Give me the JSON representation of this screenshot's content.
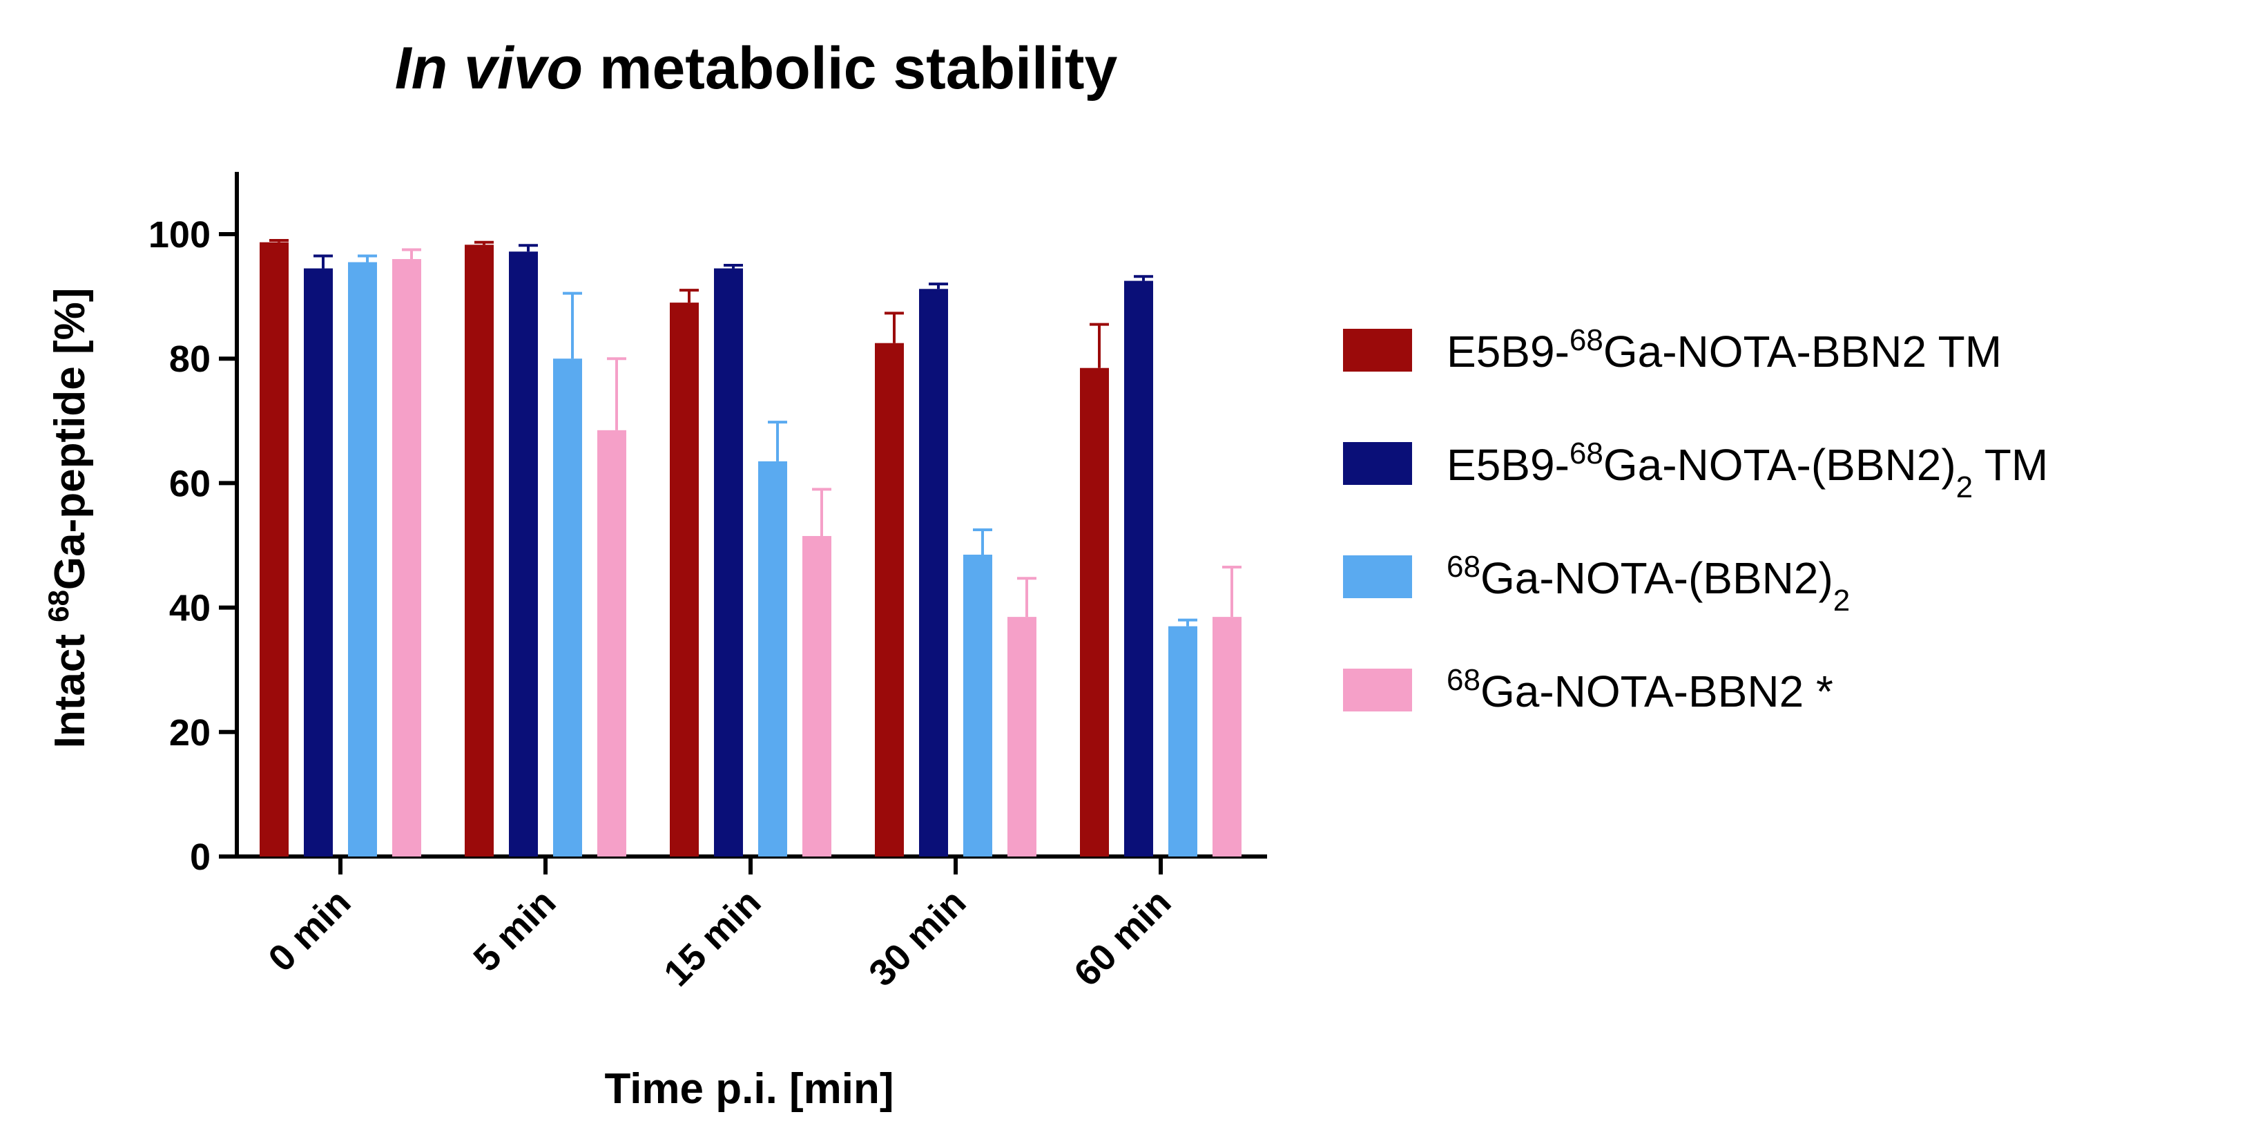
{
  "chart_data": {
    "type": "bar",
    "title": {
      "italic_part": "In vivo",
      "rest": " metabolic stability"
    },
    "xlabel": "Time p.i. [min]",
    "ylabel": {
      "prefix": "Intact ",
      "sup": "68",
      "suffix": "Ga-peptide [%]"
    },
    "ylim": [
      0,
      110
    ],
    "yticks": [
      0,
      20,
      40,
      60,
      80,
      100
    ],
    "categories": [
      "0 min",
      "5 min",
      "15 min",
      "30 min",
      "60 min"
    ],
    "series": [
      {
        "name": "E5B9-68Ga-NOTA-BBN2 TM",
        "label_parts": {
          "pre": "E5B9-",
          "sup": "68",
          "mid": "Ga-NOTA-BBN2 TM",
          "sub": "",
          "post": ""
        },
        "color": "#9B0A0A",
        "values": [
          98.7,
          98.3,
          89.0,
          82.5,
          78.5
        ],
        "errors": [
          0.3,
          0.4,
          2.0,
          4.8,
          7.0
        ]
      },
      {
        "name": "E5B9-68Ga-NOTA-(BBN2)2 TM",
        "label_parts": {
          "pre": "E5B9-",
          "sup": "68",
          "mid": "Ga-NOTA-(BBN2)",
          "sub": "2",
          "post": " TM"
        },
        "color": "#0A0F78",
        "values": [
          94.5,
          97.2,
          94.5,
          91.2,
          92.5
        ],
        "errors": [
          2.0,
          1.0,
          0.5,
          0.8,
          0.7
        ]
      },
      {
        "name": "68Ga-NOTA-(BBN2)2",
        "label_parts": {
          "pre": "",
          "sup": "68",
          "mid": "Ga-NOTA-(BBN2)",
          "sub": "2",
          "post": ""
        },
        "color": "#5AAAF0",
        "values": [
          95.5,
          80.0,
          63.5,
          48.5,
          37.0
        ],
        "errors": [
          1.0,
          10.5,
          6.3,
          4.0,
          1.0
        ]
      },
      {
        "name": "68Ga-NOTA-BBN2 *",
        "label_parts": {
          "pre": "",
          "sup": "68",
          "mid": "Ga-NOTA-BBN2 *",
          "sub": "",
          "post": ""
        },
        "color": "#F5A0C8",
        "values": [
          96.0,
          68.5,
          51.5,
          38.5,
          38.5
        ],
        "errors": [
          1.5,
          11.5,
          7.5,
          6.2,
          8.0
        ]
      }
    ],
    "legend_position": "right",
    "grid": false
  }
}
